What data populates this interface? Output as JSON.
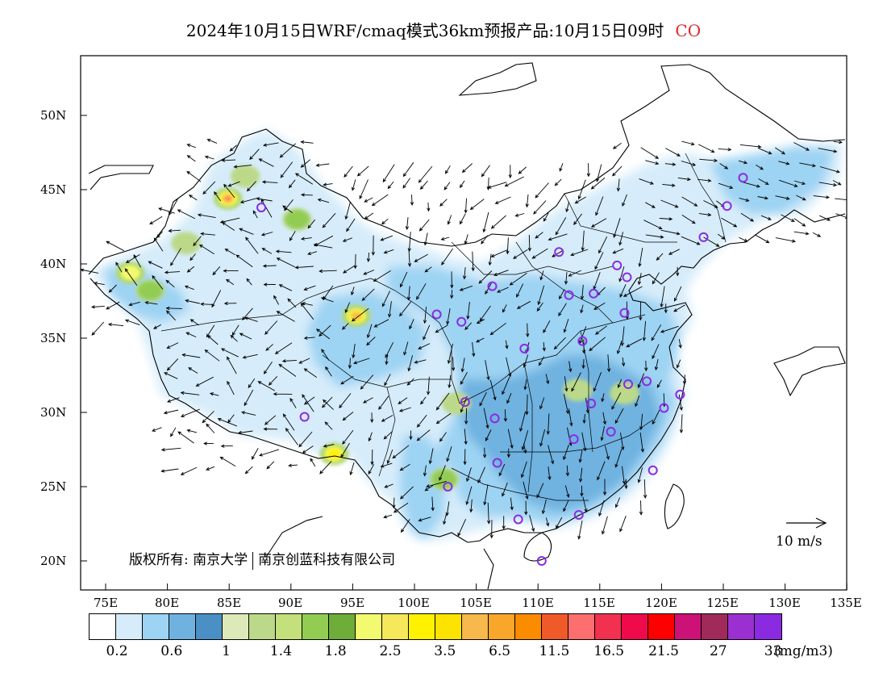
{
  "title": {
    "text": "2024年10月15日WRF/cmaq模式36km预报产品:10月15日09时",
    "species": "CO"
  },
  "credit": {
    "prefix": "版权所有:",
    "org1": "南京大学",
    "org2": "南京创蓝科技有限公司"
  },
  "wind_scale": {
    "label": "10 m/s",
    "speed": 10
  },
  "axes": {
    "lat_labels": [
      "50N",
      "45N",
      "40N",
      "35N",
      "30N",
      "25N",
      "20N"
    ],
    "lon_labels": [
      "75E",
      "80E",
      "85E",
      "90E",
      "95E",
      "100E",
      "105E",
      "110E",
      "115E",
      "120E",
      "125E",
      "130E",
      "135E"
    ],
    "lon_range": [
      73,
      135
    ],
    "lat_range": [
      18,
      54
    ]
  },
  "colorbar": {
    "colors": [
      "#ffffff",
      "#d6ecfa",
      "#9dd3f3",
      "#6fb2e0",
      "#4a90c4",
      "#dde9b8",
      "#bcd98a",
      "#c3e07a",
      "#92cc52",
      "#6fad3a",
      "#f4fa70",
      "#f5e85a",
      "#fff200",
      "#fde400",
      "#f7b84c",
      "#f8a72a",
      "#fb8c00",
      "#f05a28",
      "#fd6e6e",
      "#f2304f",
      "#ee0a4b",
      "#ff0000",
      "#cc1177",
      "#a02b5a",
      "#9b30d0",
      "#8a2be2"
    ],
    "tick_labels": [
      "0.2",
      "0.6",
      "1",
      "1.4",
      "1.8",
      "2.5",
      "3.5",
      "6.5",
      "11.5",
      "16.5",
      "21.5",
      "27",
      "33"
    ],
    "unit": "(mg/m3)"
  },
  "stations": [
    {
      "lon": 126.6,
      "lat": 45.8
    },
    {
      "lon": 125.3,
      "lat": 43.9
    },
    {
      "lon": 123.4,
      "lat": 41.8
    },
    {
      "lon": 87.6,
      "lat": 43.8
    },
    {
      "lon": 111.7,
      "lat": 40.8
    },
    {
      "lon": 116.4,
      "lat": 39.9
    },
    {
      "lon": 117.2,
      "lat": 39.1
    },
    {
      "lon": 106.3,
      "lat": 38.5
    },
    {
      "lon": 112.5,
      "lat": 37.9
    },
    {
      "lon": 114.5,
      "lat": 38.0
    },
    {
      "lon": 101.8,
      "lat": 36.6
    },
    {
      "lon": 103.8,
      "lat": 36.1
    },
    {
      "lon": 117.0,
      "lat": 36.7
    },
    {
      "lon": 113.6,
      "lat": 34.8
    },
    {
      "lon": 108.9,
      "lat": 34.3
    },
    {
      "lon": 117.3,
      "lat": 31.9
    },
    {
      "lon": 118.8,
      "lat": 32.1
    },
    {
      "lon": 121.5,
      "lat": 31.2
    },
    {
      "lon": 120.2,
      "lat": 30.3
    },
    {
      "lon": 114.3,
      "lat": 30.6
    },
    {
      "lon": 104.1,
      "lat": 30.7
    },
    {
      "lon": 106.5,
      "lat": 29.6
    },
    {
      "lon": 91.1,
      "lat": 29.7
    },
    {
      "lon": 112.9,
      "lat": 28.2
    },
    {
      "lon": 115.9,
      "lat": 28.7
    },
    {
      "lon": 106.7,
      "lat": 26.6
    },
    {
      "lon": 119.3,
      "lat": 26.1
    },
    {
      "lon": 102.7,
      "lat": 25.0
    },
    {
      "lon": 113.3,
      "lat": 23.1
    },
    {
      "lon": 108.4,
      "lat": 22.8
    },
    {
      "lon": 110.3,
      "lat": 20.0
    }
  ],
  "hotspots": [
    {
      "lon": 84.9,
      "lat": 44.4,
      "level": 18
    },
    {
      "lon": 93.5,
      "lat": 27.2,
      "level": 13
    },
    {
      "lon": 95.3,
      "lat": 36.5,
      "level": 14
    },
    {
      "lon": 77.0,
      "lat": 39.4,
      "level": 11
    },
    {
      "lon": 78.6,
      "lat": 38.2,
      "level": 8
    },
    {
      "lon": 90.5,
      "lat": 43.0,
      "level": 8
    },
    {
      "lon": 113.2,
      "lat": 31.5,
      "level": 7
    },
    {
      "lon": 117.0,
      "lat": 31.3,
      "level": 7
    },
    {
      "lon": 102.4,
      "lat": 25.5,
      "level": 8
    },
    {
      "lon": 103.4,
      "lat": 30.6,
      "level": 7
    },
    {
      "lon": 86.3,
      "lat": 45.9,
      "level": 7
    },
    {
      "lon": 81.5,
      "lat": 41.4,
      "level": 7
    }
  ]
}
